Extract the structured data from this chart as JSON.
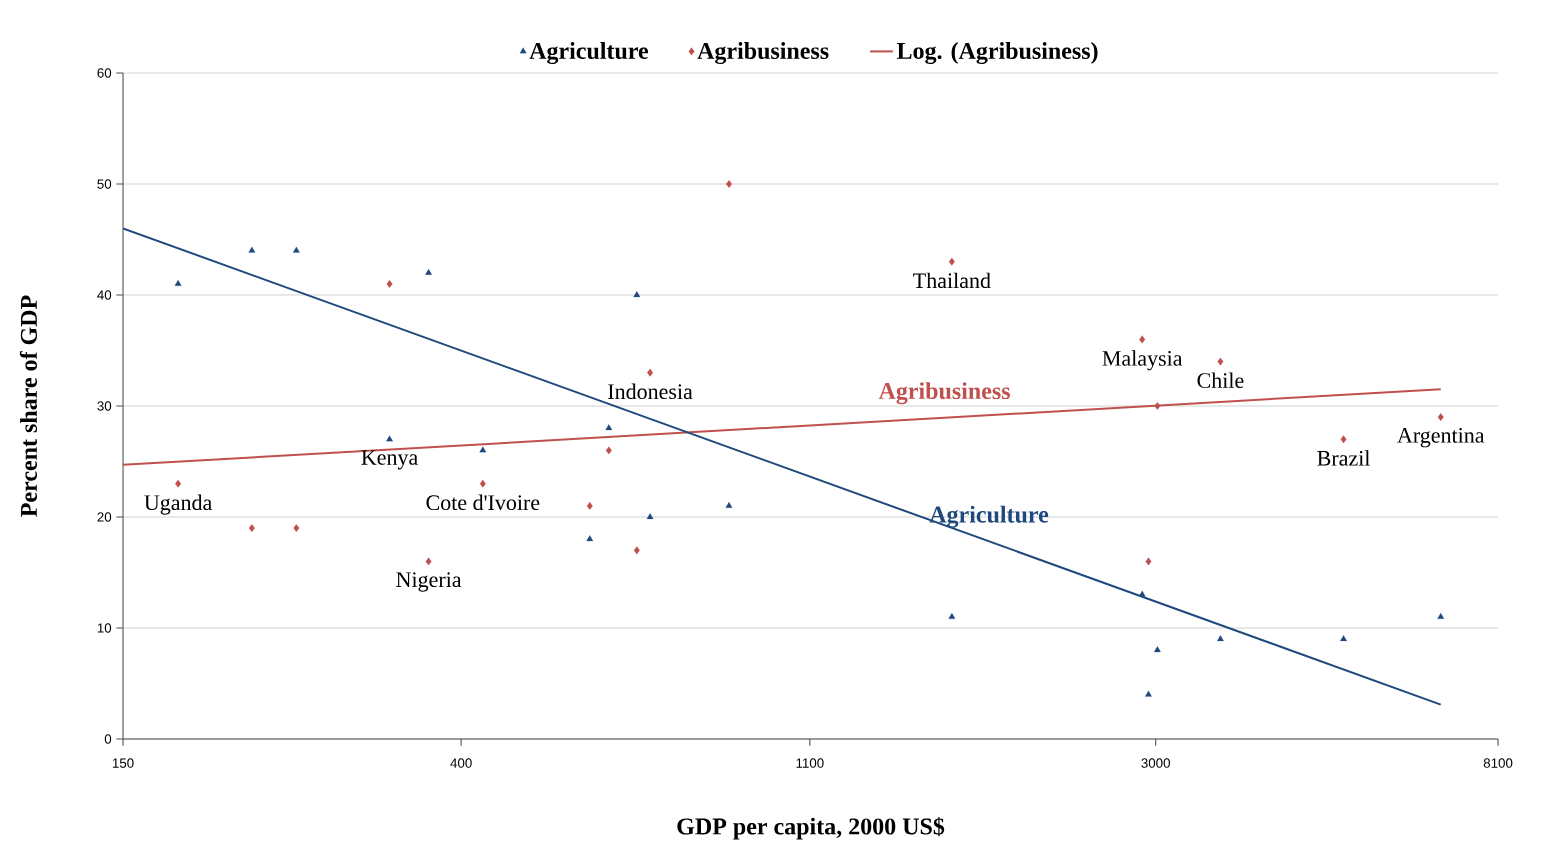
{
  "chart_data": {
    "type": "scatter",
    "xlabel": "GDP per capita, 2000 US$",
    "ylabel": "Percent share of GDP",
    "log": "x",
    "grid": "y",
    "legend": "top",
    "xlim": [
      150,
      8100
    ],
    "xticks": [
      150,
      400,
      1100,
      3000,
      8100
    ],
    "ylim": [
      0,
      60
    ],
    "yticks": [
      0,
      10,
      20,
      30,
      40,
      50,
      60
    ],
    "series": [
      {
        "name": "Agriculture",
        "marker": "triangle",
        "color": "#1f497d",
        "x": [
          176,
          218,
          248,
          325,
          364,
          426,
          581,
          614,
          666,
          692,
          870,
          1661,
          2885,
          2938,
          3015,
          3620,
          5174,
          6860
        ],
        "values": [
          41,
          44,
          44,
          27,
          42,
          26,
          18,
          28,
          40,
          20,
          21,
          11,
          13,
          4,
          8,
          9,
          9,
          11
        ]
      },
      {
        "name": "Agribusiness",
        "marker": "diamond",
        "color": "#c0504d",
        "x": [
          176,
          218,
          248,
          325,
          364,
          426,
          581,
          614,
          666,
          692,
          870,
          1661,
          2885,
          2938,
          3015,
          3620,
          5174,
          6860
        ],
        "values": [
          23,
          19,
          19,
          41,
          16,
          23,
          21,
          26,
          17,
          33,
          50,
          43,
          36,
          16,
          30,
          34,
          27,
          29
        ]
      },
      {
        "name": "Log. (Agribusiness)",
        "type": "line",
        "color": "#c0504d",
        "x": [
          150,
          6860
        ],
        "values": [
          24.7,
          31.5
        ]
      },
      {
        "type": "line",
        "color": "#1f497d",
        "x": [
          150,
          6860
        ],
        "values": [
          46.0,
          3.1
        ]
      }
    ],
    "annotations": [
      {
        "text": "Uganda",
        "x": 176,
        "y": 23
      },
      {
        "text": "Kenya",
        "x": 325,
        "y": 27
      },
      {
        "text": "Nigeria",
        "x": 364,
        "y": 16
      },
      {
        "text": "Cote d'Ivoire",
        "x": 426,
        "y": 23
      },
      {
        "text": "Indonesia",
        "x": 692,
        "y": 33
      },
      {
        "text": "Thailand",
        "x": 1661,
        "y": 43
      },
      {
        "text": "Malaysia",
        "x": 2885,
        "y": 36
      },
      {
        "text": "Chile",
        "x": 3620,
        "y": 34
      },
      {
        "text": "Brazil",
        "x": 5174,
        "y": 27
      },
      {
        "text": "Argentina",
        "x": 6860,
        "y": 29
      },
      {
        "text": "Agribusiness",
        "x": 1626,
        "y": 28.94
      },
      {
        "text": "Agriculture",
        "x": 1850,
        "y": 17.81
      }
    ]
  }
}
